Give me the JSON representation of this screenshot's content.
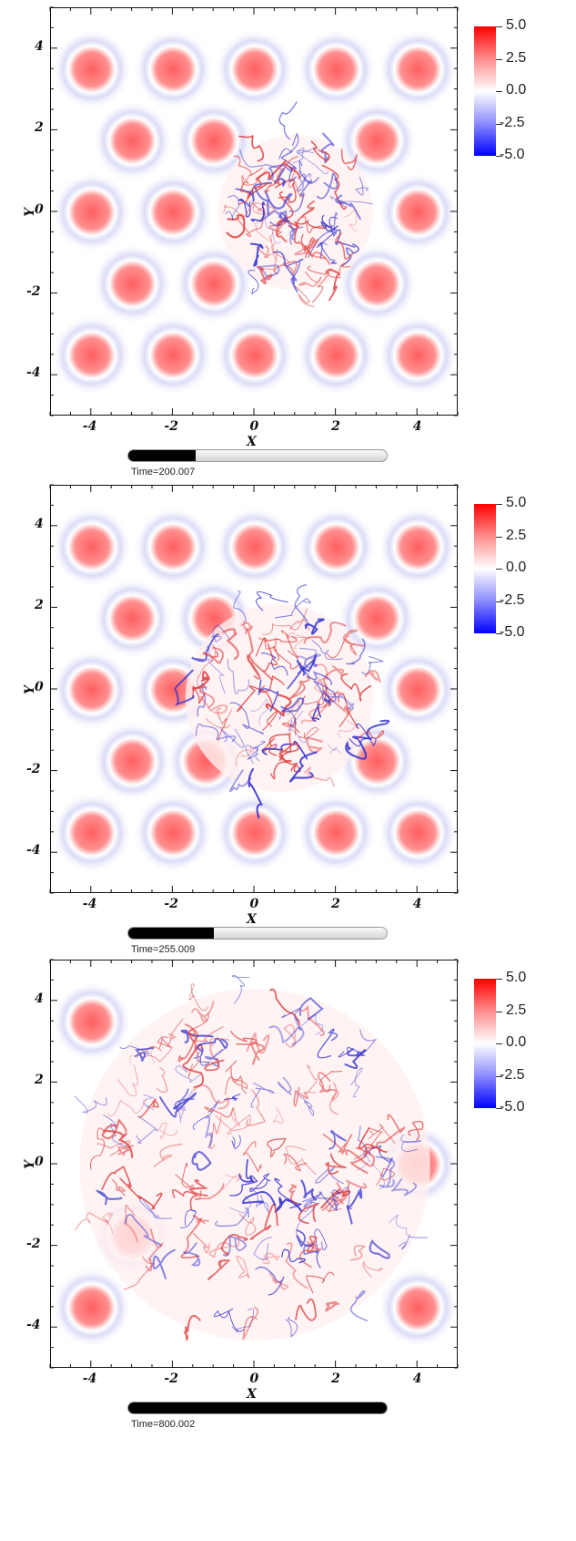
{
  "chart_data": [
    {
      "type": "heatmap",
      "title": "",
      "xlabel": "X",
      "ylabel": "Y",
      "xlim": [
        -5,
        5
      ],
      "ylim": [
        -5,
        5
      ],
      "x_ticks": [
        "-4",
        "-2",
        "0",
        "2",
        "4"
      ],
      "y_ticks": [
        "4",
        "2",
        "0",
        "-2",
        "-4"
      ],
      "colorbar": {
        "ticks": [
          "5.0",
          "2.5",
          "0.0",
          "-2.5",
          "-5.0"
        ],
        "min": -5.0,
        "max": 5.0,
        "colors": [
          "#0000ff",
          "#ffffff",
          "#ff0000"
        ]
      },
      "time_label": "Time=200.007",
      "progress": 0.26,
      "vortices": [
        [
          -4,
          3.5
        ],
        [
          -2,
          3.5
        ],
        [
          0,
          3.5
        ],
        [
          2,
          3.5
        ],
        [
          4,
          3.5
        ],
        [
          -3,
          1.75
        ],
        [
          -1,
          1.75
        ],
        [
          3,
          1.75
        ],
        [
          -4,
          0
        ],
        [
          -2,
          0
        ],
        [
          4,
          0
        ],
        [
          -3,
          -1.75
        ],
        [
          -1,
          -1.75
        ],
        [
          3,
          -1.75
        ],
        [
          -4,
          -3.5
        ],
        [
          -2,
          -3.5
        ],
        [
          0,
          -3.5
        ],
        [
          2,
          -3.5
        ],
        [
          4,
          -3.5
        ]
      ],
      "turbulent_region": {
        "center": [
          1,
          0
        ],
        "radius": 1.9
      }
    },
    {
      "type": "heatmap",
      "title": "",
      "xlabel": "X",
      "ylabel": "Y",
      "xlim": [
        -5,
        5
      ],
      "ylim": [
        -5,
        5
      ],
      "x_ticks": [
        "-4",
        "-2",
        "0",
        "2",
        "4"
      ],
      "y_ticks": [
        "4",
        "2",
        "0",
        "-2",
        "-4"
      ],
      "colorbar": {
        "ticks": [
          "5.0",
          "2.5",
          "0.0",
          "-2.5",
          "-5.0"
        ],
        "min": -5.0,
        "max": 5.0,
        "colors": [
          "#0000ff",
          "#ffffff",
          "#ff0000"
        ]
      },
      "time_label": "Time=255.009",
      "progress": 0.33,
      "vortices": [
        [
          -4,
          3.5
        ],
        [
          -2,
          3.5
        ],
        [
          0,
          3.5
        ],
        [
          2,
          3.5
        ],
        [
          4,
          3.5
        ],
        [
          -3,
          1.75
        ],
        [
          -1,
          1.75
        ],
        [
          3,
          1.75
        ],
        [
          -4,
          0
        ],
        [
          -2,
          0
        ],
        [
          4,
          0
        ],
        [
          -3,
          -1.75
        ],
        [
          -1.2,
          -1.75
        ],
        [
          3,
          -1.75
        ],
        [
          -4,
          -3.5
        ],
        [
          -2,
          -3.5
        ],
        [
          0,
          -3.5
        ],
        [
          2,
          -3.5
        ],
        [
          4,
          -3.5
        ]
      ],
      "turbulent_region": {
        "center": [
          0.6,
          -0.2
        ],
        "radius": 2.3
      }
    },
    {
      "type": "heatmap",
      "title": "",
      "xlabel": "X",
      "ylabel": "Y",
      "xlim": [
        -5,
        5
      ],
      "ylim": [
        -5,
        5
      ],
      "x_ticks": [
        "-4",
        "-2",
        "0",
        "2",
        "4"
      ],
      "y_ticks": [
        "4",
        "2",
        "0",
        "-2",
        "-4"
      ],
      "colorbar": {
        "ticks": [
          "5.0",
          "2.5",
          "0.0",
          "-2.5",
          "-5.0"
        ],
        "min": -5.0,
        "max": 5.0,
        "colors": [
          "#0000ff",
          "#ffffff",
          "#ff0000"
        ]
      },
      "time_label": "Time=800.002",
      "progress": 1.0,
      "vortices": [
        [
          -4,
          3.5
        ],
        [
          4,
          0
        ],
        [
          -3,
          -1.75
        ],
        [
          -4,
          -3.5
        ],
        [
          4,
          -3.5
        ]
      ],
      "turbulent_region": {
        "center": [
          0,
          0
        ],
        "radius": 4.3
      }
    }
  ]
}
